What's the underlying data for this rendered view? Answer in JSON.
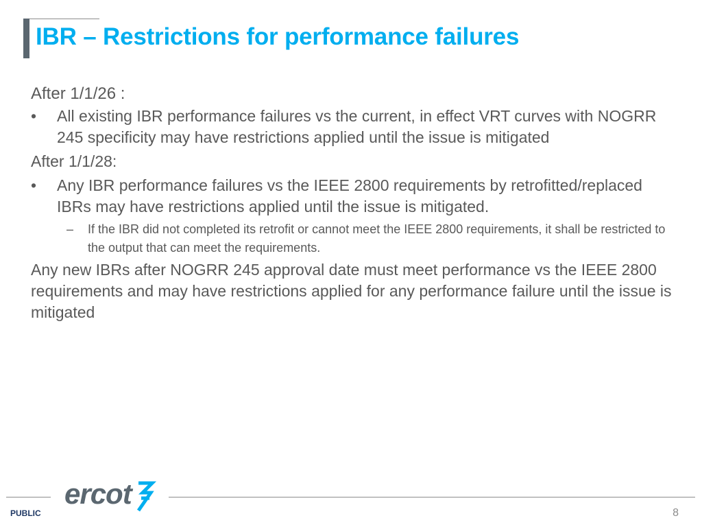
{
  "slide": {
    "title": "IBR – Restrictions for performance failures",
    "page_number": "8",
    "classification": "PUBLIC",
    "logo_text": "ercot",
    "colors": {
      "title": "#00aeef",
      "body_text": "#595959",
      "accent_bar": "#5b6770",
      "logo": "#5b6770",
      "logo_bolt": "#00aeef"
    }
  },
  "body": {
    "section1_heading": "After 1/1/26 :",
    "section1_bullet_marker": "•",
    "section1_bullet": "All existing IBR performance failures vs the current, in effect VRT curves with NOGRR 245 specificity may have restrictions applied until the issue is mitigated",
    "section2_heading": "After 1/1/28:",
    "section2_bullet_marker": "•",
    "section2_bullet": " Any IBR performance failures vs the IEEE 2800 requirements by retrofitted/replaced IBRs may have restrictions applied until the issue is mitigated.",
    "section2_sub_marker": "–",
    "section2_sub": "If the IBR did not completed its retrofit or cannot meet the IEEE 2800 requirements, it shall be restricted to the output that can meet the requirements.",
    "closing_paragraph": "Any new IBRs after NOGRR 245 approval date must meet performance vs the IEEE 2800 requirements and may have restrictions applied for any performance failure until the issue is mitigated"
  }
}
